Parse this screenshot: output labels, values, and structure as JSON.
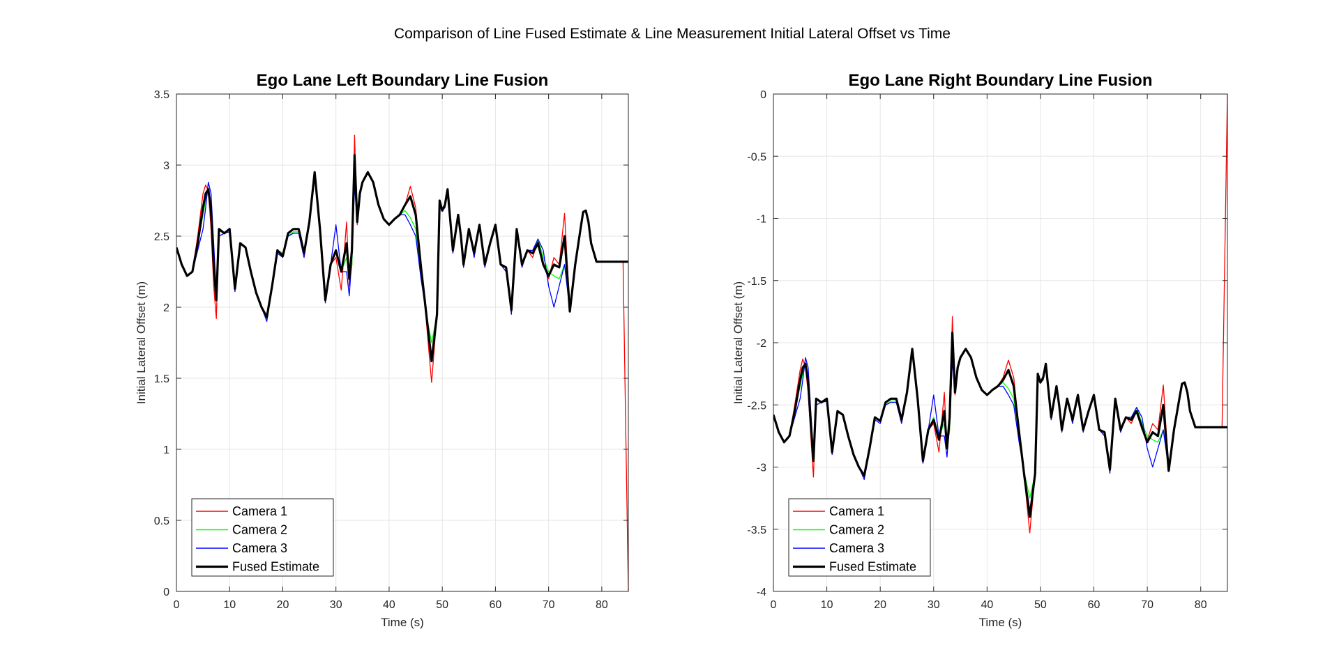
{
  "figure": {
    "suptitle": "Comparison of Line Fused Estimate & Line Measurement Initial Lateral Offset vs Time"
  },
  "colors": {
    "camera1": "#ff0000",
    "camera2": "#00ff00",
    "camera3": "#0000ff",
    "fused": "#000000",
    "grid": "#e6e6e6",
    "axes": "#262626"
  },
  "chart_data": [
    {
      "type": "line",
      "title": "Ego Lane Left Boundary Line Fusion",
      "xlabel": "Time (s)",
      "ylabel": "Initial Lateral Offset (m)",
      "xlim": [
        0,
        85
      ],
      "ylim": [
        0,
        3.5
      ],
      "xticks": [
        0,
        10,
        20,
        30,
        40,
        50,
        60,
        70,
        80
      ],
      "yticks": [
        0,
        0.5,
        1,
        1.5,
        2,
        2.5,
        3,
        3.5
      ],
      "ytick_labels": [
        "0",
        "0.5",
        "1",
        "1.5",
        "2",
        "2.5",
        "3",
        "3.5"
      ],
      "grid": true,
      "legend": "bottom-left",
      "x": [
        0,
        1,
        2,
        3,
        4,
        5,
        5.5,
        6,
        6.5,
        7,
        7.5,
        8,
        9,
        10,
        11,
        12,
        13,
        14,
        15,
        16,
        17,
        18,
        19,
        20,
        21,
        22,
        23,
        24,
        25,
        26,
        27,
        28,
        29,
        30,
        31,
        32,
        32.5,
        33,
        33.5,
        34,
        34.5,
        35,
        36,
        37,
        38,
        39,
        40,
        41,
        42,
        43,
        44,
        45,
        46,
        47,
        48,
        49,
        49.5,
        50,
        50.5,
        51,
        52,
        53,
        53.5,
        54,
        55,
        56,
        57,
        58,
        59,
        60,
        61,
        62,
        63,
        64,
        65,
        66,
        67,
        68,
        69,
        70,
        71,
        72,
        73,
        74,
        75,
        76,
        76.5,
        77,
        77.5,
        78,
        79,
        80,
        81,
        82,
        83,
        84,
        85
      ],
      "series": [
        {
          "name": "Camera 1",
          "values": [
            2.42,
            2.3,
            2.22,
            2.25,
            2.5,
            2.8,
            2.86,
            2.82,
            2.55,
            2.15,
            1.92,
            2.55,
            2.52,
            2.55,
            2.13,
            2.45,
            2.42,
            2.25,
            2.1,
            2.0,
            1.92,
            2.15,
            2.4,
            2.38,
            2.52,
            2.55,
            2.55,
            2.38,
            2.6,
            2.95,
            2.55,
            2.05,
            2.3,
            2.35,
            2.12,
            2.6,
            2.15,
            2.3,
            3.21,
            2.58,
            2.8,
            2.88,
            2.95,
            2.88,
            2.72,
            2.62,
            2.58,
            2.62,
            2.65,
            2.72,
            2.85,
            2.7,
            2.3,
            1.9,
            1.47,
            1.95,
            2.75,
            2.68,
            2.72,
            2.83,
            2.4,
            2.65,
            2.5,
            2.3,
            2.55,
            2.38,
            2.58,
            2.3,
            2.45,
            2.58,
            2.3,
            2.28,
            2.0,
            2.55,
            2.3,
            2.4,
            2.35,
            2.47,
            2.3,
            2.2,
            2.35,
            2.3,
            2.66,
            1.98,
            2.3,
            2.55,
            2.67,
            2.68,
            2.6,
            2.45,
            2.32,
            2.32,
            2.32,
            2.32,
            2.32,
            2.32,
            0
          ],
          "color": "#ff0000"
        },
        {
          "name": "Camera 2",
          "values": [
            2.42,
            2.3,
            2.22,
            2.25,
            2.45,
            2.65,
            2.75,
            2.82,
            2.7,
            2.35,
            2.05,
            2.55,
            2.52,
            2.55,
            2.13,
            2.45,
            2.42,
            2.25,
            2.1,
            2.0,
            1.92,
            2.15,
            2.4,
            2.38,
            2.5,
            2.53,
            2.53,
            2.38,
            2.6,
            2.95,
            2.55,
            2.05,
            2.3,
            2.4,
            2.25,
            2.35,
            2.2,
            2.3,
            2.9,
            2.62,
            2.8,
            2.88,
            2.95,
            2.88,
            2.72,
            2.62,
            2.58,
            2.62,
            2.65,
            2.68,
            2.63,
            2.55,
            2.25,
            1.95,
            1.75,
            1.95,
            2.73,
            2.68,
            2.72,
            2.82,
            2.4,
            2.65,
            2.5,
            2.3,
            2.55,
            2.38,
            2.58,
            2.3,
            2.45,
            2.58,
            2.3,
            2.28,
            2.0,
            2.55,
            2.3,
            2.4,
            2.38,
            2.48,
            2.35,
            2.25,
            2.22,
            2.2,
            2.3,
            1.98,
            2.3,
            2.55,
            2.67,
            2.68,
            2.6,
            2.45,
            2.32,
            2.32,
            2.32,
            2.32,
            2.32,
            2.32,
            2.32
          ],
          "color": "#00ff00"
        },
        {
          "name": "Camera 3",
          "values": [
            2.42,
            2.3,
            2.22,
            2.25,
            2.4,
            2.55,
            2.7,
            2.88,
            2.8,
            2.45,
            2.1,
            2.5,
            2.52,
            2.53,
            2.11,
            2.45,
            2.42,
            2.25,
            2.1,
            2.0,
            1.9,
            2.15,
            2.38,
            2.35,
            2.5,
            2.52,
            2.52,
            2.35,
            2.6,
            2.93,
            2.55,
            2.03,
            2.3,
            2.58,
            2.25,
            2.25,
            2.08,
            2.35,
            2.85,
            2.62,
            2.8,
            2.88,
            2.95,
            2.88,
            2.72,
            2.62,
            2.58,
            2.62,
            2.65,
            2.65,
            2.58,
            2.5,
            2.2,
            1.95,
            1.65,
            1.95,
            2.73,
            2.68,
            2.7,
            2.8,
            2.38,
            2.65,
            2.48,
            2.28,
            2.55,
            2.35,
            2.58,
            2.28,
            2.45,
            2.58,
            2.3,
            2.25,
            1.95,
            2.55,
            2.28,
            2.4,
            2.4,
            2.48,
            2.4,
            2.15,
            2.0,
            2.15,
            2.3,
            1.98,
            2.3,
            2.55,
            2.67,
            2.68,
            2.6,
            2.45,
            2.32,
            2.32,
            2.32,
            2.32,
            2.32,
            2.32,
            2.32
          ],
          "color": "#0000ff"
        },
        {
          "name": "Fused Estimate",
          "values": [
            2.42,
            2.3,
            2.22,
            2.25,
            2.45,
            2.7,
            2.8,
            2.83,
            2.68,
            2.3,
            2.05,
            2.55,
            2.52,
            2.55,
            2.13,
            2.45,
            2.42,
            2.25,
            2.1,
            2.0,
            1.93,
            2.15,
            2.4,
            2.36,
            2.52,
            2.55,
            2.55,
            2.38,
            2.6,
            2.95,
            2.55,
            2.05,
            2.3,
            2.4,
            2.25,
            2.45,
            2.2,
            2.4,
            3.07,
            2.6,
            2.8,
            2.88,
            2.95,
            2.88,
            2.72,
            2.62,
            2.58,
            2.62,
            2.65,
            2.72,
            2.78,
            2.65,
            2.28,
            1.95,
            1.62,
            1.95,
            2.75,
            2.68,
            2.72,
            2.83,
            2.4,
            2.65,
            2.5,
            2.3,
            2.55,
            2.38,
            2.58,
            2.3,
            2.45,
            2.58,
            2.3,
            2.28,
            1.98,
            2.55,
            2.3,
            2.4,
            2.38,
            2.45,
            2.3,
            2.22,
            2.3,
            2.28,
            2.5,
            1.97,
            2.3,
            2.55,
            2.67,
            2.68,
            2.6,
            2.45,
            2.32,
            2.32,
            2.32,
            2.32,
            2.32,
            2.32,
            2.32
          ],
          "color": "#000000"
        }
      ]
    },
    {
      "type": "line",
      "title": "Ego Lane Right Boundary Line Fusion",
      "xlabel": "Time (s)",
      "ylabel": "Initial Lateral Offset (m)",
      "xlim": [
        0,
        85
      ],
      "ylim": [
        -4,
        0
      ],
      "xticks": [
        0,
        10,
        20,
        30,
        40,
        50,
        60,
        70,
        80
      ],
      "yticks": [
        -4,
        -3.5,
        -3,
        -2.5,
        -2,
        -1.5,
        -1,
        -0.5,
        0
      ],
      "ytick_labels": [
        "-4",
        "-3.5",
        "-3",
        "-2.5",
        "-2",
        "-1.5",
        "-1",
        "-0.5",
        "0"
      ],
      "grid": true,
      "legend": "bottom-left",
      "x": [
        0,
        1,
        2,
        3,
        4,
        5,
        5.5,
        6,
        6.5,
        7,
        7.5,
        8,
        9,
        10,
        11,
        12,
        13,
        14,
        15,
        16,
        17,
        18,
        19,
        20,
        21,
        22,
        23,
        24,
        25,
        26,
        27,
        28,
        29,
        30,
        31,
        32,
        32.5,
        33,
        33.5,
        34,
        34.5,
        35,
        36,
        37,
        38,
        39,
        40,
        41,
        42,
        43,
        44,
        45,
        46,
        47,
        48,
        49,
        49.5,
        50,
        50.5,
        51,
        52,
        53,
        53.5,
        54,
        55,
        56,
        57,
        58,
        59,
        60,
        61,
        62,
        63,
        64,
        65,
        66,
        67,
        68,
        69,
        70,
        71,
        72,
        73,
        74,
        75,
        76,
        76.5,
        77,
        77.5,
        78,
        79,
        80,
        81,
        82,
        83,
        84,
        85
      ],
      "series": [
        {
          "name": "Camera 1",
          "values": [
            -2.58,
            -2.72,
            -2.8,
            -2.75,
            -2.5,
            -2.22,
            -2.13,
            -2.2,
            -2.4,
            -2.75,
            -3.08,
            -2.45,
            -2.48,
            -2.45,
            -2.88,
            -2.55,
            -2.58,
            -2.75,
            -2.9,
            -3.0,
            -3.08,
            -2.85,
            -2.6,
            -2.62,
            -2.48,
            -2.45,
            -2.45,
            -2.62,
            -2.4,
            -2.05,
            -2.45,
            -2.95,
            -2.7,
            -2.65,
            -2.88,
            -2.4,
            -2.85,
            -2.7,
            -1.79,
            -2.42,
            -2.2,
            -2.12,
            -2.05,
            -2.12,
            -2.28,
            -2.38,
            -2.42,
            -2.38,
            -2.35,
            -2.28,
            -2.14,
            -2.28,
            -2.7,
            -3.1,
            -3.53,
            -3.05,
            -2.25,
            -2.32,
            -2.28,
            -2.17,
            -2.6,
            -2.35,
            -2.5,
            -2.7,
            -2.45,
            -2.62,
            -2.42,
            -2.7,
            -2.55,
            -2.42,
            -2.7,
            -2.72,
            -3.0,
            -2.45,
            -2.7,
            -2.6,
            -2.65,
            -2.55,
            -2.7,
            -2.78,
            -2.65,
            -2.7,
            -2.34,
            -3.02,
            -2.7,
            -2.45,
            -2.33,
            -2.32,
            -2.4,
            -2.55,
            -2.68,
            -2.68,
            -2.68,
            -2.68,
            -2.68,
            -2.68,
            0
          ],
          "color": "#ff0000"
        },
        {
          "name": "Camera 2",
          "values": [
            -2.58,
            -2.72,
            -2.8,
            -2.75,
            -2.55,
            -2.35,
            -2.25,
            -2.18,
            -2.3,
            -2.65,
            -2.95,
            -2.45,
            -2.48,
            -2.45,
            -2.88,
            -2.55,
            -2.58,
            -2.75,
            -2.9,
            -3.0,
            -3.08,
            -2.85,
            -2.6,
            -2.62,
            -2.5,
            -2.47,
            -2.47,
            -2.62,
            -2.4,
            -2.05,
            -2.45,
            -2.95,
            -2.7,
            -2.6,
            -2.75,
            -2.65,
            -2.8,
            -2.7,
            -2.1,
            -2.38,
            -2.2,
            -2.12,
            -2.05,
            -2.12,
            -2.28,
            -2.38,
            -2.42,
            -2.38,
            -2.35,
            -2.32,
            -2.37,
            -2.45,
            -2.75,
            -3.05,
            -3.25,
            -3.05,
            -2.27,
            -2.32,
            -2.28,
            -2.18,
            -2.6,
            -2.35,
            -2.5,
            -2.7,
            -2.45,
            -2.62,
            -2.42,
            -2.7,
            -2.55,
            -2.42,
            -2.7,
            -2.72,
            -3.0,
            -2.45,
            -2.7,
            -2.6,
            -2.62,
            -2.52,
            -2.65,
            -2.75,
            -2.78,
            -2.8,
            -2.7,
            -3.02,
            -2.7,
            -2.45,
            -2.33,
            -2.32,
            -2.4,
            -2.55,
            -2.68,
            -2.68,
            -2.68,
            -2.68,
            -2.68,
            -2.68,
            -2.68
          ],
          "color": "#00ff00"
        },
        {
          "name": "Camera 3",
          "values": [
            -2.58,
            -2.72,
            -2.8,
            -2.75,
            -2.6,
            -2.45,
            -2.3,
            -2.12,
            -2.2,
            -2.55,
            -2.9,
            -2.5,
            -2.48,
            -2.47,
            -2.9,
            -2.55,
            -2.58,
            -2.75,
            -2.9,
            -3.0,
            -3.1,
            -2.85,
            -2.62,
            -2.65,
            -2.5,
            -2.48,
            -2.48,
            -2.65,
            -2.4,
            -2.07,
            -2.45,
            -2.97,
            -2.7,
            -2.42,
            -2.75,
            -2.75,
            -2.92,
            -2.65,
            -2.15,
            -2.38,
            -2.2,
            -2.12,
            -2.05,
            -2.12,
            -2.28,
            -2.38,
            -2.42,
            -2.38,
            -2.35,
            -2.35,
            -2.42,
            -2.5,
            -2.8,
            -3.05,
            -3.35,
            -3.05,
            -2.27,
            -2.32,
            -2.3,
            -2.2,
            -2.62,
            -2.35,
            -2.52,
            -2.72,
            -2.45,
            -2.65,
            -2.42,
            -2.72,
            -2.55,
            -2.42,
            -2.7,
            -2.75,
            -3.05,
            -2.45,
            -2.72,
            -2.6,
            -2.6,
            -2.52,
            -2.6,
            -2.85,
            -3.0,
            -2.85,
            -2.7,
            -3.02,
            -2.7,
            -2.45,
            -2.33,
            -2.32,
            -2.4,
            -2.55,
            -2.68,
            -2.68,
            -2.68,
            -2.68,
            -2.68,
            -2.68,
            -2.68
          ],
          "color": "#0000ff"
        },
        {
          "name": "Fused Estimate",
          "values": [
            -2.58,
            -2.72,
            -2.8,
            -2.75,
            -2.55,
            -2.3,
            -2.2,
            -2.17,
            -2.32,
            -2.65,
            -2.95,
            -2.45,
            -2.48,
            -2.45,
            -2.88,
            -2.55,
            -2.58,
            -2.75,
            -2.9,
            -3.0,
            -3.07,
            -2.85,
            -2.6,
            -2.63,
            -2.48,
            -2.45,
            -2.45,
            -2.62,
            -2.4,
            -2.05,
            -2.45,
            -2.95,
            -2.7,
            -2.62,
            -2.78,
            -2.55,
            -2.85,
            -2.6,
            -1.92,
            -2.4,
            -2.2,
            -2.12,
            -2.05,
            -2.12,
            -2.28,
            -2.38,
            -2.42,
            -2.38,
            -2.35,
            -2.3,
            -2.22,
            -2.35,
            -2.72,
            -3.08,
            -3.4,
            -3.05,
            -2.25,
            -2.32,
            -2.28,
            -2.17,
            -2.6,
            -2.35,
            -2.5,
            -2.7,
            -2.45,
            -2.62,
            -2.42,
            -2.7,
            -2.55,
            -2.42,
            -2.7,
            -2.72,
            -3.02,
            -2.45,
            -2.7,
            -2.6,
            -2.62,
            -2.55,
            -2.68,
            -2.8,
            -2.72,
            -2.75,
            -2.5,
            -3.03,
            -2.7,
            -2.45,
            -2.33,
            -2.32,
            -2.4,
            -2.55,
            -2.68,
            -2.68,
            -2.68,
            -2.68,
            -2.68,
            -2.68,
            -2.68
          ],
          "color": "#000000"
        }
      ]
    }
  ]
}
